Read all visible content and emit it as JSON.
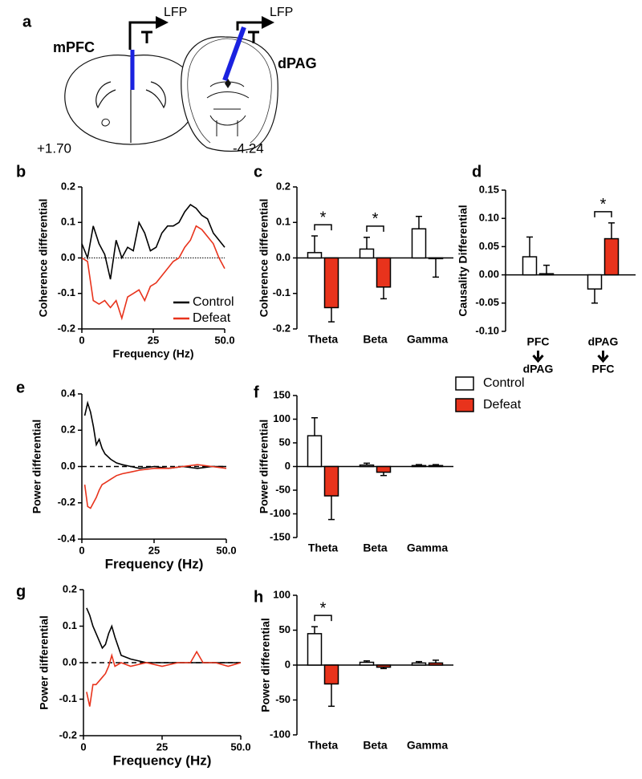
{
  "diagram": {
    "panel": "a",
    "regions": [
      "mPFC",
      "dPAG"
    ],
    "signals": [
      "LFP",
      "LFP"
    ],
    "coordinates": [
      "+1.70",
      "-4.24"
    ]
  },
  "chart_data": [
    {
      "panel": "b",
      "type": "line",
      "x_label": "Frequency (Hz)",
      "y_label": "Coherence differential",
      "x": [
        0,
        2,
        4,
        6,
        8,
        10,
        12,
        14,
        16,
        18,
        20,
        22,
        24,
        26,
        28,
        30,
        32,
        34,
        36,
        38,
        40,
        42,
        44,
        46,
        48,
        50
      ],
      "series": [
        {
          "name": "Control",
          "color": "#000000",
          "values": [
            0.04,
            0.0,
            0.09,
            0.04,
            0.01,
            -0.06,
            0.05,
            0.0,
            0.03,
            0.02,
            0.1,
            0.07,
            0.02,
            0.03,
            0.07,
            0.09,
            0.09,
            0.1,
            0.13,
            0.15,
            0.14,
            0.12,
            0.11,
            0.07,
            0.05,
            0.03
          ]
        },
        {
          "name": "Defeat",
          "color": "#e8331c",
          "values": [
            0.0,
            -0.01,
            -0.12,
            -0.13,
            -0.12,
            -0.14,
            -0.12,
            -0.17,
            -0.11,
            -0.1,
            -0.09,
            -0.12,
            -0.08,
            -0.07,
            -0.05,
            -0.03,
            -0.01,
            0.0,
            0.03,
            0.05,
            0.09,
            0.08,
            0.06,
            0.04,
            0.0,
            -0.03
          ]
        }
      ],
      "xlim": [
        0,
        50
      ],
      "xticks": [
        0,
        25,
        {
          "value": 50,
          "label": "50.0"
        }
      ],
      "ylim": [
        -0.2,
        0.2
      ],
      "yticks": [
        -0.2,
        -0.1,
        {
          "value": 0,
          "label": "0.0"
        },
        0.1,
        0.2
      ],
      "zero_line": "dotted",
      "legend": "lower right"
    },
    {
      "panel": "c",
      "type": "bar",
      "y_label": "Coherence differential",
      "categories": [
        "Theta",
        "Beta",
        "Gamma"
      ],
      "series": [
        {
          "color": "#ffffff",
          "values": [
            0.015,
            0.025,
            0.082
          ],
          "errors": [
            0.047,
            0.033,
            0.035
          ]
        },
        {
          "color": "#e8331c",
          "values": [
            -0.14,
            -0.082,
            -0.002
          ],
          "errors": [
            0.04,
            0.033,
            0.052
          ]
        }
      ],
      "ylim": [
        -0.2,
        0.2
      ],
      "yticks": [
        -0.2,
        -0.1,
        {
          "value": 0,
          "label": "0.0"
        },
        0.1,
        0.2
      ],
      "annotations": [
        "*",
        "*",
        null
      ]
    },
    {
      "panel": "d",
      "type": "bar",
      "y_label": "Causality Differential",
      "categories": [
        "PFC",
        "dPAG"
      ],
      "categories_to": [
        "dPAG",
        "PFC"
      ],
      "series": [
        {
          "name": "Control",
          "color": "#ffffff",
          "values": [
            0.032,
            -0.025
          ],
          "errors": [
            0.035,
            0.025
          ]
        },
        {
          "name": "Defeat",
          "color": "#e8331c",
          "values": [
            0.002,
            0.064
          ],
          "errors": [
            0.015,
            0.028
          ]
        }
      ],
      "ylim": [
        -0.1,
        0.15
      ],
      "yticks": [
        {
          "value": -0.1,
          "label": "-0.10"
        },
        -0.05,
        {
          "value": 0,
          "label": "0.00"
        },
        0.05,
        {
          "value": 0.1,
          "label": "0.10"
        },
        0.15
      ],
      "annotations": [
        null,
        "*"
      ],
      "legend": "outside right"
    },
    {
      "panel": "e",
      "type": "line",
      "x_label": "Frequency (Hz)",
      "y_label": "Power differential",
      "x": [
        1,
        2,
        3,
        4,
        5,
        6,
        7,
        8,
        10,
        12,
        14,
        17,
        20,
        25,
        30,
        35,
        40,
        45,
        50
      ],
      "series": [
        {
          "color": "#000000",
          "values": [
            0.28,
            0.35,
            0.3,
            0.22,
            0.12,
            0.15,
            0.1,
            0.07,
            0.04,
            0.02,
            0.01,
            0.0,
            -0.01,
            0.0,
            -0.01,
            0.0,
            -0.01,
            0.0,
            0.0
          ]
        },
        {
          "color": "#e8331c",
          "values": [
            -0.1,
            -0.22,
            -0.23,
            -0.2,
            -0.17,
            -0.13,
            -0.1,
            -0.09,
            -0.07,
            -0.05,
            -0.04,
            -0.03,
            -0.02,
            -0.01,
            -0.01,
            0.0,
            0.01,
            0.0,
            -0.01
          ]
        }
      ],
      "xlim": [
        0,
        50
      ],
      "xticks": [
        0,
        25,
        {
          "value": 50,
          "label": "50.0"
        }
      ],
      "ylim": [
        -0.4,
        0.4
      ],
      "yticks": [
        -0.4,
        -0.2,
        {
          "value": 0,
          "label": "0.0"
        },
        0.2,
        0.4
      ],
      "zero_line": "dashed"
    },
    {
      "panel": "f",
      "type": "bar",
      "y_label": "Power differential",
      "categories": [
        "Theta",
        "Beta",
        "Gamma"
      ],
      "series": [
        {
          "color": "#ffffff",
          "values": [
            65,
            3,
            2
          ],
          "errors": [
            38,
            4,
            2
          ]
        },
        {
          "color": "#e8331c",
          "values": [
            -62,
            -12,
            2
          ],
          "errors": [
            50,
            7,
            2
          ]
        }
      ],
      "ylim": [
        -150,
        150
      ],
      "yticks": [
        -150,
        -100,
        -50,
        0,
        50,
        100,
        150
      ],
      "annotations": [
        null,
        null,
        null
      ]
    },
    {
      "panel": "g",
      "type": "line",
      "x_label": "Frequency (Hz)",
      "y_label": "Power differential",
      "x": [
        1,
        2,
        3,
        4,
        5,
        6,
        7,
        8,
        9,
        10,
        12,
        15,
        20,
        25,
        30,
        34,
        36,
        38,
        42,
        46,
        50
      ],
      "series": [
        {
          "color": "#000000",
          "values": [
            0.15,
            0.13,
            0.1,
            0.08,
            0.06,
            0.04,
            0.05,
            0.08,
            0.1,
            0.07,
            0.02,
            0.01,
            0.0,
            0.0,
            0.0,
            0.0,
            0.0,
            0.0,
            0.0,
            0.0,
            0.0
          ]
        },
        {
          "color": "#e8331c",
          "values": [
            -0.08,
            -0.12,
            -0.06,
            -0.06,
            -0.05,
            -0.04,
            -0.03,
            -0.01,
            0.02,
            -0.01,
            0.0,
            -0.01,
            0.0,
            -0.01,
            0.0,
            0.0,
            0.03,
            0.0,
            0.0,
            -0.01,
            0.0
          ]
        }
      ],
      "xlim": [
        0,
        50
      ],
      "xticks": [
        0,
        25,
        {
          "value": 50,
          "label": "50.0"
        }
      ],
      "ylim": [
        -0.2,
        0.2
      ],
      "yticks": [
        -0.2,
        -0.1,
        {
          "value": 0,
          "label": "0.0"
        },
        0.1,
        0.2
      ],
      "zero_line": "dashed"
    },
    {
      "panel": "h",
      "type": "bar",
      "y_label": "Power differential",
      "categories": [
        "Theta",
        "Beta",
        "Gamma"
      ],
      "series": [
        {
          "color": "#ffffff",
          "values": [
            45,
            4,
            3
          ],
          "errors": [
            10,
            2,
            2
          ]
        },
        {
          "color": "#e8331c",
          "values": [
            -27,
            -3,
            3
          ],
          "errors": [
            32,
            2,
            4
          ]
        }
      ],
      "ylim": [
        -100,
        100
      ],
      "yticks": [
        -100,
        -50,
        0,
        50,
        100
      ],
      "annotations": [
        "*",
        null,
        null
      ]
    }
  ]
}
